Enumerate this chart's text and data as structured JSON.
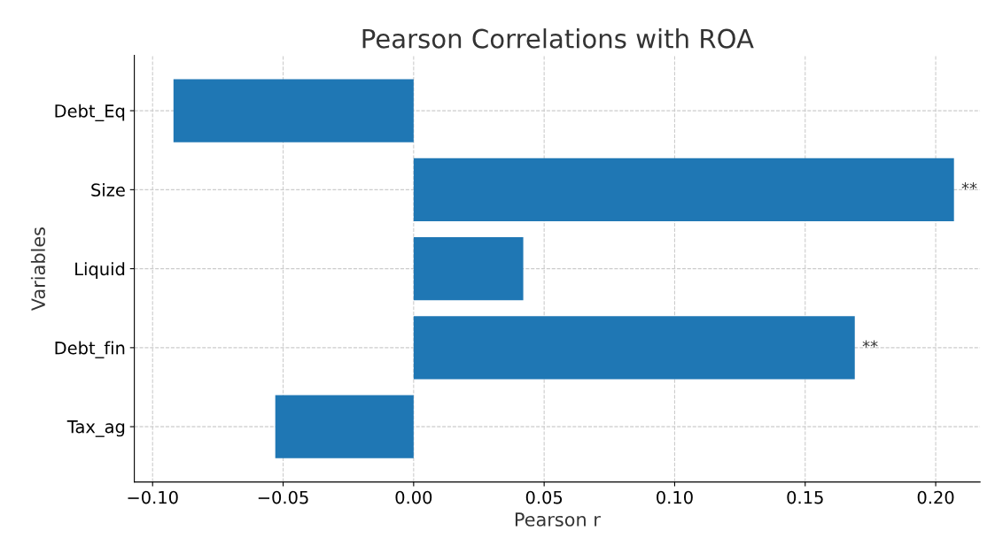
{
  "chart_data": {
    "type": "bar",
    "orientation": "horizontal",
    "title": "Pearson Correlations with ROA",
    "xlabel": "Pearson r",
    "ylabel": "Variables",
    "categories": [
      "Debt_Eq",
      "Size",
      "Liquid",
      "Debt_fin",
      "Tax_ag"
    ],
    "values": [
      -0.092,
      0.207,
      0.042,
      0.169,
      -0.053
    ],
    "color": "#1f77b4",
    "xlim": [
      -0.107,
      0.217
    ],
    "xticks": [
      {
        "value": -0.1,
        "label": "−0.10"
      },
      {
        "value": -0.05,
        "label": "−0.05"
      },
      {
        "value": 0.0,
        "label": "0.00"
      },
      {
        "value": 0.05,
        "label": "0.05"
      },
      {
        "value": 0.1,
        "label": "0.10"
      },
      {
        "value": 0.15,
        "label": "0.15"
      },
      {
        "value": 0.2,
        "label": "0.20"
      }
    ],
    "grid": true,
    "line_style": "dashed",
    "annotations": [
      {
        "text": "**",
        "x": 0.207,
        "y": "Size"
      },
      {
        "text": "**",
        "x": 0.169,
        "y": "Debt_fin"
      }
    ]
  }
}
